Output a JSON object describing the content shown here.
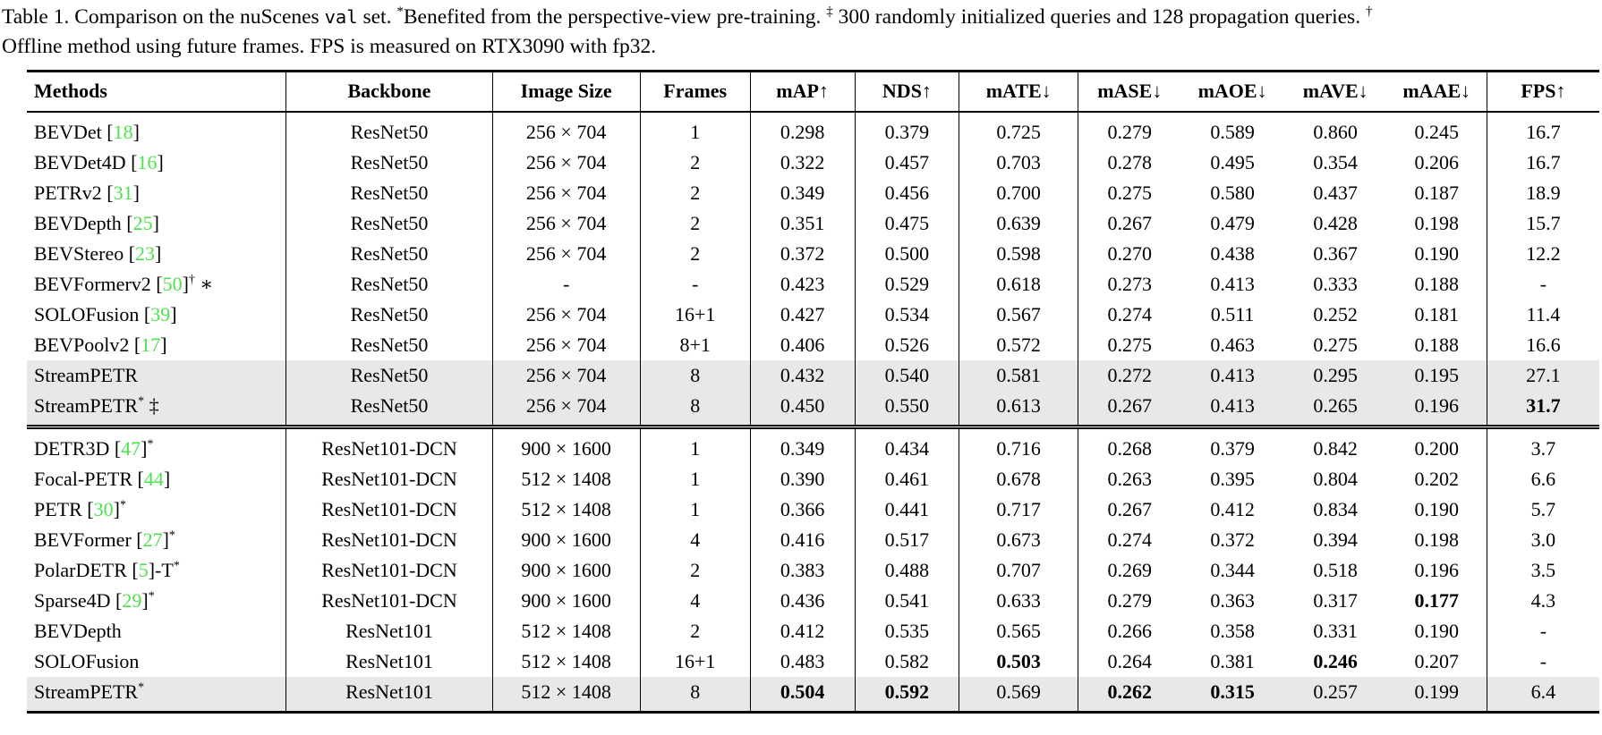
{
  "caption": {
    "parts": [
      {
        "text": "Table 1. Comparison on the nuScenes ",
        "style": "normal"
      },
      {
        "text": "val",
        "style": "mono"
      },
      {
        "text": " set. ",
        "style": "normal"
      },
      {
        "text": "*",
        "style": "sup"
      },
      {
        "text": "Benefited from the perspective-view pre-training. ",
        "style": "normal"
      },
      {
        "text": "‡",
        "style": "sup"
      },
      {
        "text": " 300 randomly initialized queries and 128 propagation queries. ",
        "style": "normal"
      },
      {
        "text": "†",
        "style": "sup"
      },
      {
        "text": " Offline method using future frames. FPS is measured on RTX3090 with fp32.",
        "style": "normal"
      }
    ]
  },
  "colors": {
    "citation_green": "#4de24d",
    "highlight_gray": "#e8e8e8",
    "text": "#000000"
  },
  "table": {
    "headers": [
      "Methods",
      "Backbone",
      "Image Size",
      "Frames",
      "mAP↑",
      "NDS↑",
      "mATE↓",
      "mASE↓",
      "mAOE↓",
      "mAVE↓",
      "mAAE↓",
      "FPS↑"
    ],
    "metric_keys": [
      "mAP",
      "NDS",
      "mATE",
      "mASE",
      "mAOE",
      "mAVE",
      "mAAE",
      "FPS"
    ],
    "col_widths": [
      "16.5%",
      "13.1%",
      "9.4%",
      "7.0%",
      "6.65%",
      "6.65%",
      "7.55%",
      "6.55%",
      "6.55%",
      "6.55%",
      "6.35%",
      "7.15%"
    ],
    "separator_after_columns": [
      0,
      1,
      2,
      3,
      4,
      5,
      6,
      10
    ],
    "groups": [
      {
        "rows": [
          {
            "method": "BEVDet",
            "cite": "18",
            "post": "",
            "sup": "",
            "tail": "",
            "highlight": false,
            "backbone": "ResNet50",
            "image_size": "256 × 704",
            "frames": "1",
            "values": [
              "0.298",
              "0.379",
              "0.725",
              "0.279",
              "0.589",
              "0.860",
              "0.245",
              "16.7"
            ],
            "bold": []
          },
          {
            "method": "BEVDet4D",
            "cite": "16",
            "post": "",
            "sup": "",
            "tail": "",
            "highlight": false,
            "backbone": "ResNet50",
            "image_size": "256 × 704",
            "frames": "2",
            "values": [
              "0.322",
              "0.457",
              "0.703",
              "0.278",
              "0.495",
              "0.354",
              "0.206",
              "16.7"
            ],
            "bold": []
          },
          {
            "method": "PETRv2",
            "cite": "31",
            "post": "",
            "sup": "",
            "tail": "",
            "highlight": false,
            "backbone": "ResNet50",
            "image_size": "256 × 704",
            "frames": "2",
            "values": [
              "0.349",
              "0.456",
              "0.700",
              "0.275",
              "0.580",
              "0.437",
              "0.187",
              "18.9"
            ],
            "bold": []
          },
          {
            "method": "BEVDepth",
            "cite": "25",
            "post": "",
            "sup": "",
            "tail": "",
            "highlight": false,
            "backbone": "ResNet50",
            "image_size": "256 × 704",
            "frames": "2",
            "values": [
              "0.351",
              "0.475",
              "0.639",
              "0.267",
              "0.479",
              "0.428",
              "0.198",
              "15.7"
            ],
            "bold": []
          },
          {
            "method": "BEVStereo",
            "cite": "23",
            "post": "",
            "sup": "",
            "tail": "",
            "highlight": false,
            "backbone": "ResNet50",
            "image_size": "256 × 704",
            "frames": "2",
            "values": [
              "0.372",
              "0.500",
              "0.598",
              "0.270",
              "0.438",
              "0.367",
              "0.190",
              "12.2"
            ],
            "bold": []
          },
          {
            "method": "BEVFormerv2",
            "cite": "50",
            "post": "",
            "sup": "†",
            "tail": "∗",
            "highlight": false,
            "backbone": "ResNet50",
            "image_size": "-",
            "frames": "-",
            "values": [
              "0.423",
              "0.529",
              "0.618",
              "0.273",
              "0.413",
              "0.333",
              "0.188",
              "-"
            ],
            "bold": []
          },
          {
            "method": "SOLOFusion",
            "cite": "39",
            "post": "",
            "sup": "",
            "tail": "",
            "highlight": false,
            "backbone": "ResNet50",
            "image_size": "256 × 704",
            "frames": "16+1",
            "values": [
              "0.427",
              "0.534",
              "0.567",
              "0.274",
              "0.511",
              "0.252",
              "0.181",
              "11.4"
            ],
            "bold": []
          },
          {
            "method": "BEVPoolv2",
            "cite": "17",
            "post": "",
            "sup": "",
            "tail": "",
            "highlight": false,
            "backbone": "ResNet50",
            "image_size": "256 × 704",
            "frames": "8+1",
            "values": [
              "0.406",
              "0.526",
              "0.572",
              "0.275",
              "0.463",
              "0.275",
              "0.188",
              "16.6"
            ],
            "bold": []
          },
          {
            "method": "StreamPETR",
            "cite": null,
            "post": "",
            "sup": "",
            "tail": "",
            "highlight": true,
            "backbone": "ResNet50",
            "image_size": "256 × 704",
            "frames": "8",
            "values": [
              "0.432",
              "0.540",
              "0.581",
              "0.272",
              "0.413",
              "0.295",
              "0.195",
              "27.1"
            ],
            "bold": []
          },
          {
            "method": "StreamPETR",
            "cite": null,
            "post": "",
            "sup": "*",
            "tail": "‡",
            "highlight": true,
            "backbone": "ResNet50",
            "image_size": "256 × 704",
            "frames": "8",
            "values": [
              "0.450",
              "0.550",
              "0.613",
              "0.267",
              "0.413",
              "0.265",
              "0.196",
              "31.7"
            ],
            "bold": [
              7
            ]
          }
        ]
      },
      {
        "rows": [
          {
            "method": "DETR3D",
            "cite": "47",
            "post": "",
            "sup": "*",
            "tail": "",
            "highlight": false,
            "backbone": "ResNet101-DCN",
            "image_size": "900 × 1600",
            "frames": "1",
            "values": [
              "0.349",
              "0.434",
              "0.716",
              "0.268",
              "0.379",
              "0.842",
              "0.200",
              "3.7"
            ],
            "bold": []
          },
          {
            "method": "Focal-PETR",
            "cite": "44",
            "post": "",
            "sup": "",
            "tail": "",
            "highlight": false,
            "backbone": "ResNet101-DCN",
            "image_size": "512 × 1408",
            "frames": "1",
            "values": [
              "0.390",
              "0.461",
              "0.678",
              "0.263",
              "0.395",
              "0.804",
              "0.202",
              "6.6"
            ],
            "bold": []
          },
          {
            "method": "PETR",
            "cite": "30",
            "post": "",
            "sup": "*",
            "tail": "",
            "highlight": false,
            "backbone": "ResNet101-DCN",
            "image_size": "512 × 1408",
            "frames": "1",
            "values": [
              "0.366",
              "0.441",
              "0.717",
              "0.267",
              "0.412",
              "0.834",
              "0.190",
              "5.7"
            ],
            "bold": []
          },
          {
            "method": "BEVFormer",
            "cite": "27",
            "post": "",
            "sup": "*",
            "tail": "",
            "highlight": false,
            "backbone": "ResNet101-DCN",
            "image_size": "900 × 1600",
            "frames": "4",
            "values": [
              "0.416",
              "0.517",
              "0.673",
              "0.274",
              "0.372",
              "0.394",
              "0.198",
              "3.0"
            ],
            "bold": []
          },
          {
            "method": "PolarDETR",
            "cite": "5",
            "post": "-T",
            "sup": "*",
            "tail": "",
            "highlight": false,
            "backbone": "ResNet101-DCN",
            "image_size": "900 × 1600",
            "frames": "2",
            "values": [
              "0.383",
              "0.488",
              "0.707",
              "0.269",
              "0.344",
              "0.518",
              "0.196",
              "3.5"
            ],
            "bold": []
          },
          {
            "method": "Sparse4D",
            "cite": "29",
            "post": "",
            "sup": "*",
            "tail": "",
            "highlight": false,
            "backbone": "ResNet101-DCN",
            "image_size": "900 × 1600",
            "frames": "4",
            "values": [
              "0.436",
              "0.541",
              "0.633",
              "0.279",
              "0.363",
              "0.317",
              "0.177",
              "4.3"
            ],
            "bold": [
              6
            ]
          },
          {
            "method": "BEVDepth",
            "cite": null,
            "post": "",
            "sup": "",
            "tail": "",
            "highlight": false,
            "backbone": "ResNet101",
            "image_size": "512 × 1408",
            "frames": "2",
            "values": [
              "0.412",
              "0.535",
              "0.565",
              "0.266",
              "0.358",
              "0.331",
              "0.190",
              "-"
            ],
            "bold": []
          },
          {
            "method": "SOLOFusion",
            "cite": null,
            "post": "",
            "sup": "",
            "tail": "",
            "highlight": false,
            "backbone": "ResNet101",
            "image_size": "512 × 1408",
            "frames": "16+1",
            "values": [
              "0.483",
              "0.582",
              "0.503",
              "0.264",
              "0.381",
              "0.246",
              "0.207",
              "-"
            ],
            "bold": [
              2,
              5
            ]
          },
          {
            "method": "StreamPETR",
            "cite": null,
            "post": "",
            "sup": "*",
            "tail": "",
            "highlight": true,
            "backbone": "ResNet101",
            "image_size": "512 × 1408",
            "frames": "8",
            "values": [
              "0.504",
              "0.592",
              "0.569",
              "0.262",
              "0.315",
              "0.257",
              "0.199",
              "6.4"
            ],
            "bold": [
              0,
              1,
              3,
              4
            ]
          }
        ]
      }
    ]
  }
}
